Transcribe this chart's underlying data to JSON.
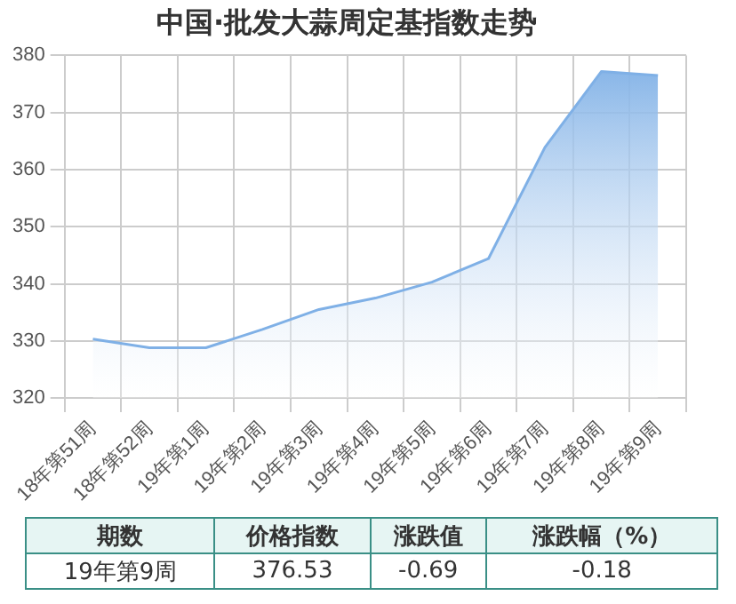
{
  "chart_data": {
    "type": "area",
    "title": "中国·批发大蒜周定基指数走势",
    "categories": [
      "18年第51周",
      "18年第52周",
      "19年第1周",
      "19年第2周",
      "19年第3周",
      "19年第4周",
      "19年第5周",
      "19年第6周",
      "19年第7周",
      "19年第8周",
      "19年第9周"
    ],
    "series": [
      {
        "color": "#7fb0e6",
        "values": [
          330.3,
          328.8,
          328.8,
          332,
          335.5,
          337.5,
          340.3,
          344.4,
          363.9,
          377.2,
          376.5
        ]
      }
    ],
    "ylim": [
      320,
      380
    ],
    "yticks": [
      320,
      330,
      340,
      350,
      360,
      370,
      380
    ],
    "grid": true,
    "legend": false,
    "marker": "none",
    "annotations": [
      "期数",
      "价格指数",
      "涨跌值",
      "涨跌幅（%）",
      "19年第9周",
      "376.53",
      "-0.69",
      "-0.18"
    ]
  }
}
